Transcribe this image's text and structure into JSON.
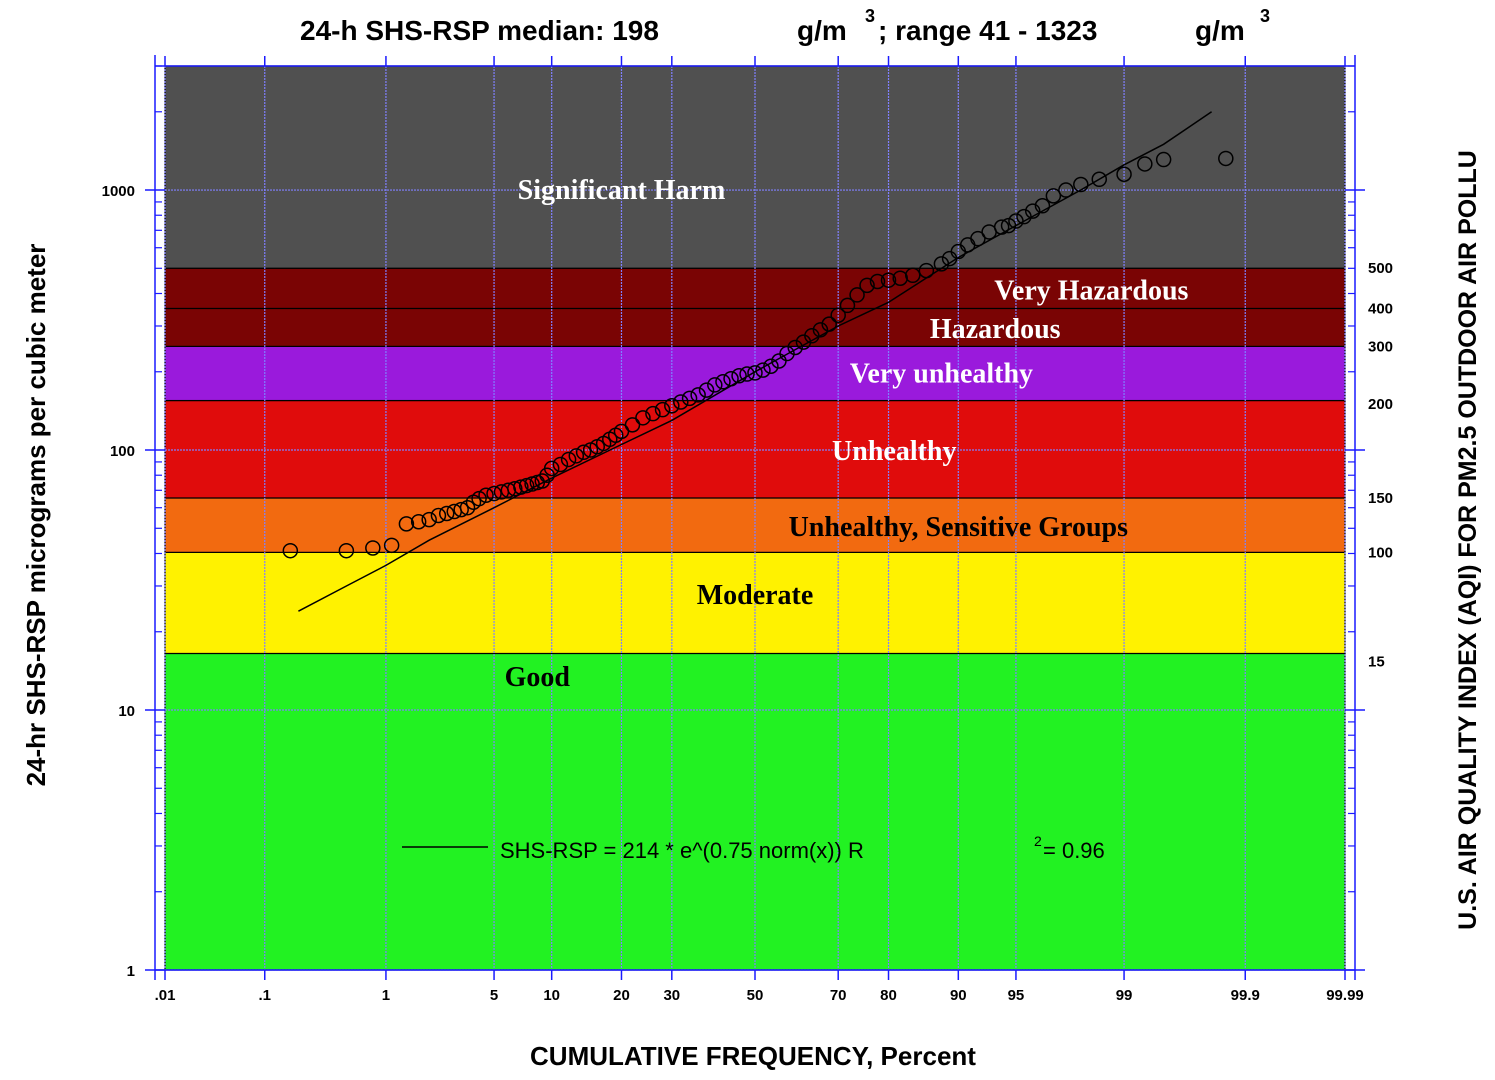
{
  "chart_data": {
    "type": "scatter",
    "title_parts": {
      "part1": "24-h SHS-RSP median: 198",
      "unit1": "g/m",
      "sup1": "3",
      "part2": "; range 41 - 1323",
      "unit2": "g/m",
      "sup2": "3"
    },
    "xlabel": "CUMULATIVE FREQUENCY, Percent",
    "ylabel": "24-hr SHS-RSP micrograms per cubic meter",
    "y2label": "U.S. AIR QUALITY INDEX (AQI) FOR PM2.5 OUTDOOR AIR POLLU",
    "x_scale": "probability",
    "y_scale": "log",
    "xlim": [
      0.01,
      99.99
    ],
    "ylim": [
      1,
      3000
    ],
    "grid": true,
    "x_ticks": [
      {
        "value": 0.01,
        "label": ".01"
      },
      {
        "value": 0.1,
        "label": ".1"
      },
      {
        "value": 1,
        "label": "1"
      },
      {
        "value": 5,
        "label": "5"
      },
      {
        "value": 10,
        "label": "10"
      },
      {
        "value": 20,
        "label": "20"
      },
      {
        "value": 30,
        "label": "30"
      },
      {
        "value": 50,
        "label": "50"
      },
      {
        "value": 70,
        "label": "70"
      },
      {
        "value": 80,
        "label": "80"
      },
      {
        "value": 90,
        "label": "90"
      },
      {
        "value": 95,
        "label": "95"
      },
      {
        "value": 99,
        "label": "99"
      },
      {
        "value": 99.9,
        "label": "99.9"
      },
      {
        "value": 99.99,
        "label": "99.99"
      }
    ],
    "y_ticks": [
      {
        "value": 1,
        "label": "1"
      },
      {
        "value": 10,
        "label": "10"
      },
      {
        "value": 100,
        "label": "100"
      },
      {
        "value": 1000,
        "label": "1000"
      }
    ],
    "aqi_ticks": [
      {
        "value": 500.4,
        "label": "500"
      },
      {
        "value": 350.4,
        "label": "400"
      },
      {
        "value": 250.4,
        "label": "300"
      },
      {
        "value": 150.4,
        "label": "200"
      },
      {
        "value": 65.4,
        "label": "150"
      },
      {
        "value": 40.4,
        "label": "100"
      },
      {
        "value": 15.4,
        "label": "15"
      }
    ],
    "bands": [
      {
        "label": "Good",
        "from": 1,
        "to": 16.5,
        "color": "#22f222",
        "text_color": "#000000",
        "label_x": 8.5,
        "label_y": 13.5
      },
      {
        "label": "Moderate",
        "from": 16.5,
        "to": 40.4,
        "color": "#fff200",
        "text_color": "#000000",
        "label_x": 50,
        "label_y": 28
      },
      {
        "label": "Unhealthy, Sensitive Groups",
        "from": 40.4,
        "to": 65.4,
        "color": "#f26a10",
        "text_color": "#000000",
        "label_x": 90,
        "label_y": 51
      },
      {
        "label": "Unhealthy",
        "from": 65.4,
        "to": 155,
        "color": "#e00c0c",
        "text_color": "#ffffff",
        "label_x": 81,
        "label_y": 100
      },
      {
        "label": "Very unhealthy",
        "from": 155,
        "to": 250.4,
        "color": "#9a1adc",
        "text_color": "#ffffff",
        "label_x": 88,
        "label_y": 199
      },
      {
        "label": "Hazardous",
        "from": 250.4,
        "to": 350.4,
        "color": "#7a0404",
        "text_color": "#ffffff",
        "label_x": 93.5,
        "label_y": 295
      },
      {
        "label": "Very Hazardous",
        "from": 350.4,
        "to": 500.4,
        "color": "#7a0404",
        "text_color": "#ffffff",
        "label_x": 98.3,
        "label_y": 415
      },
      {
        "label": "Significant Harm",
        "from": 500.4,
        "to": 3000,
        "color": "#505050",
        "text_color": "#ffffff",
        "label_x": 20,
        "label_y": 1010
      }
    ],
    "series": [
      {
        "type": "scatter",
        "x": [
          0.17,
          0.5,
          0.8,
          1.1,
          1.4,
          1.7,
          2.0,
          2.3,
          2.6,
          2.9,
          3.2,
          3.5,
          3.8,
          4.1,
          4.5,
          5.0,
          5.5,
          6.0,
          6.5,
          7.0,
          7.5,
          8.0,
          8.5,
          9.0,
          9.5,
          10.0,
          11.0,
          12,
          13,
          14,
          15,
          16,
          17,
          18,
          19,
          20,
          22,
          24,
          26,
          28,
          30,
          32,
          34,
          36,
          38,
          40,
          42,
          44,
          46,
          48,
          50,
          52,
          54,
          56,
          58,
          60,
          62,
          64,
          66,
          68,
          70,
          72,
          74,
          76,
          78,
          80,
          82,
          84,
          86,
          88,
          89,
          90,
          91,
          92,
          93,
          94,
          94.5,
          95,
          95.5,
          96,
          96.5,
          97,
          97.5,
          98,
          98.5,
          99,
          99.3,
          99.5,
          99.85
        ],
        "y": [
          41,
          41,
          42,
          43,
          52,
          53,
          54,
          56,
          57,
          58,
          59,
          60,
          63,
          65,
          67,
          68,
          69,
          70,
          71,
          72,
          73,
          74,
          75,
          76,
          80,
          85,
          88,
          92,
          95,
          98,
          100,
          103,
          106,
          110,
          114,
          118,
          125,
          133,
          138,
          143,
          148,
          153,
          158,
          163,
          170,
          178,
          183,
          188,
          193,
          196,
          198,
          203,
          210,
          220,
          235,
          248,
          260,
          275,
          290,
          305,
          330,
          360,
          395,
          430,
          445,
          450,
          458,
          470,
          490,
          520,
          545,
          580,
          615,
          650,
          690,
          720,
          730,
          760,
          790,
          830,
          870,
          950,
          1000,
          1050,
          1100,
          1150,
          1260,
          1310,
          1323
        ]
      },
      {
        "type": "line",
        "x": [
          0.2,
          0.5,
          1,
          2,
          5,
          10,
          20,
          30,
          50,
          70,
          80,
          90,
          95,
          98,
          99,
          99.5,
          99.8
        ],
        "y": [
          24,
          30,
          36,
          45,
          60,
          78,
          105,
          130,
          200,
          300,
          370,
          550,
          730,
          1000,
          1250,
          1500,
          2000
        ]
      }
    ],
    "legend": {
      "text": "SHS-RSP = 214 * e^(0.75 norm(x))    R",
      "sup": "2",
      "tail": "= 0.96"
    }
  }
}
